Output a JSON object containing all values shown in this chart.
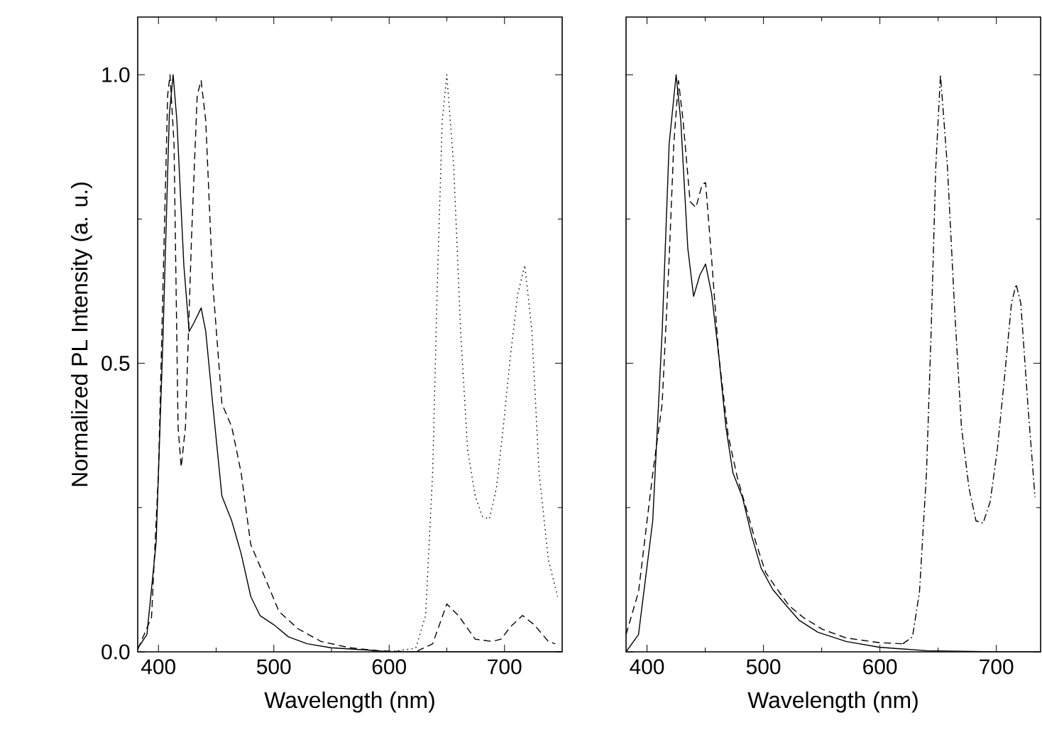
{
  "chart_data": [
    {
      "type": "line",
      "xlabel": "Wavelength (nm)",
      "ylabel": "Normalized PL Intensity (a. u.)",
      "xlim": [
        382,
        750
      ],
      "ylim": [
        0,
        1.1
      ],
      "xticks": [
        400,
        500,
        600,
        700
      ],
      "yticks": [
        {
          "value": 0,
          "label": "0.0"
        },
        {
          "value": 0.5,
          "label": "0.5"
        },
        {
          "value": 1,
          "label": "1.0"
        }
      ],
      "grid": false,
      "series": [
        {
          "color": "#000000",
          "line_style": "solid",
          "x": [
            382,
            390,
            398,
            404,
            409.4,
            412.7,
            416,
            422,
            426.6,
            430.7,
            437,
            441,
            447,
            455,
            463.5,
            471.7,
            480,
            488,
            500,
            512.7,
            529,
            549.6,
            582,
            600,
            650,
            700,
            750
          ],
          "values": [
            0.006,
            0.03,
            0.19,
            0.55,
            0.93,
            1.0,
            0.92,
            0.67,
            0.555,
            0.57,
            0.596,
            0.555,
            0.43,
            0.27,
            0.227,
            0.17,
            0.096,
            0.063,
            0.047,
            0.026,
            0.014,
            0.007,
            0.003,
            0,
            0,
            0,
            0
          ]
        },
        {
          "color": "#000000",
          "line_style": "dashed",
          "x": [
            382,
            394,
            400,
            404,
            408,
            410,
            413.5,
            417,
            419.7,
            423.4,
            428.7,
            433.6,
            437,
            441,
            447,
            455,
            463.5,
            471.7,
            480,
            492,
            504.5,
            521,
            541,
            566,
            590.6,
            623,
            637.7,
            650,
            660,
            674.6,
            689,
            697,
            705,
            715.6,
            725.8,
            738,
            744
          ],
          "values": [
            0.004,
            0.06,
            0.31,
            0.64,
            0.965,
            1.0,
            0.88,
            0.39,
            0.32,
            0.39,
            0.72,
            0.965,
            0.99,
            0.92,
            0.64,
            0.43,
            0.39,
            0.31,
            0.186,
            0.13,
            0.07,
            0.04,
            0.018,
            0.007,
            0.002,
            0,
            0.014,
            0.083,
            0.063,
            0.022,
            0.018,
            0.022,
            0.043,
            0.063,
            0.047,
            0.018,
            0.014
          ]
        },
        {
          "color": "#000000",
          "line_style": "dotted",
          "x": [
            600,
            623,
            631.6,
            637.7,
            641.8,
            646,
            650,
            656,
            662,
            668,
            674.6,
            680.7,
            686.9,
            693,
            699,
            705,
            711.5,
            717.6,
            723.8,
            730,
            738,
            746
          ],
          "values": [
            0,
            0.006,
            0.063,
            0.31,
            0.64,
            0.92,
            1.0,
            0.84,
            0.555,
            0.35,
            0.27,
            0.235,
            0.23,
            0.284,
            0.39,
            0.51,
            0.62,
            0.67,
            0.555,
            0.31,
            0.16,
            0.096
          ]
        }
      ]
    },
    {
      "type": "line",
      "xlabel": "Wavelength (nm)",
      "xlim": [
        382,
        738
      ],
      "ylim": [
        0,
        1.1
      ],
      "xticks": [
        400,
        500,
        600,
        700
      ],
      "yticks": [
        0,
        0.5,
        1
      ],
      "tick_labels": "x",
      "grid": false,
      "series": [
        {
          "color": "#000000",
          "line_style": "solid",
          "x": [
            382,
            392.7,
            404.9,
            413,
            419,
            425,
            429,
            435,
            440,
            445.4,
            450.3,
            455.5,
            461.6,
            467.7,
            473.8,
            481.9,
            490,
            498,
            508,
            518,
            530.5,
            546.7,
            571,
            599.4,
            640,
            700,
            736
          ],
          "values": [
            0,
            0.03,
            0.227,
            0.555,
            0.88,
            1.0,
            0.92,
            0.7,
            0.616,
            0.653,
            0.672,
            0.62,
            0.514,
            0.39,
            0.31,
            0.268,
            0.2,
            0.145,
            0.108,
            0.084,
            0.055,
            0.034,
            0.018,
            0.008,
            0.002,
            0,
            0
          ]
        },
        {
          "color": "#000000",
          "line_style": "dashed",
          "x": [
            382,
            392.7,
            405,
            413,
            419,
            423,
            427,
            431,
            437,
            442,
            447.4,
            450.3,
            455.5,
            461.6,
            469.7,
            477.8,
            486,
            494,
            502,
            512,
            522,
            534.6,
            550.8,
            571,
            599.4,
            619.7
          ],
          "values": [
            0.03,
            0.104,
            0.31,
            0.43,
            0.68,
            0.88,
            0.99,
            0.92,
            0.78,
            0.77,
            0.81,
            0.813,
            0.68,
            0.514,
            0.375,
            0.3,
            0.243,
            0.186,
            0.137,
            0.108,
            0.08,
            0.059,
            0.039,
            0.024,
            0.016,
            0.014
          ]
        },
        {
          "color": "#000000",
          "line_style": "dashdot",
          "x": [
            619.7,
            628,
            634,
            640,
            644,
            648,
            652,
            658,
            664,
            670,
            676.5,
            682.5,
            688.6,
            694.7,
            700.8,
            706.9,
            713,
            717,
            721,
            727,
            733.2
          ],
          "values": [
            0.014,
            0.026,
            0.104,
            0.31,
            0.555,
            0.84,
            1.0,
            0.84,
            0.6,
            0.39,
            0.284,
            0.227,
            0.223,
            0.26,
            0.35,
            0.473,
            0.604,
            0.637,
            0.604,
            0.43,
            0.268
          ]
        }
      ]
    }
  ]
}
